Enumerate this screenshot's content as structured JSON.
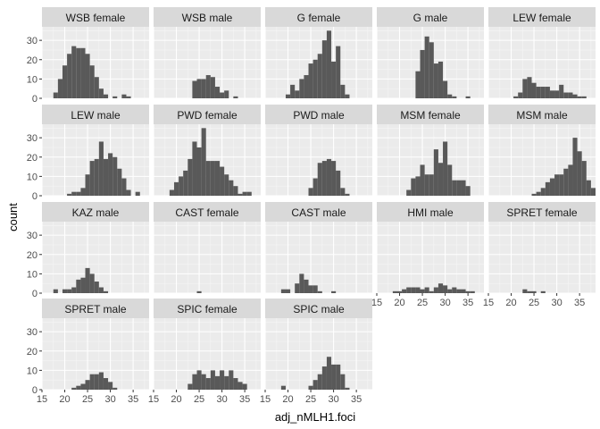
{
  "chart_data": {
    "type": "bar",
    "xlabel": "adj_nMLH1.foci",
    "ylabel": "count",
    "xlim": [
      15,
      38.5
    ],
    "ylim": [
      0,
      37
    ],
    "x_ticks": [
      15,
      20,
      25,
      30,
      35
    ],
    "y_ticks": [
      0,
      10,
      20,
      30
    ],
    "bin_start": 16.5,
    "bin_width": 1,
    "grid": true,
    "colors": {
      "panel_background": "#ebebeb",
      "strip_background": "#d9d9d9",
      "grid_major": "#ffffff",
      "bar": "#595959"
    },
    "panels": [
      {
        "name": "WSB female",
        "counts": [
          0,
          3,
          10,
          17,
          23,
          27,
          26,
          26,
          23,
          17,
          11,
          5,
          2,
          0,
          1,
          0,
          2,
          1,
          0,
          0,
          0,
          0
        ]
      },
      {
        "name": "WSB male",
        "counts": [
          0,
          0,
          0,
          0,
          0,
          0,
          0,
          9,
          10,
          10,
          12,
          11,
          6,
          3,
          4,
          0,
          1,
          0,
          0,
          0,
          0,
          0
        ]
      },
      {
        "name": "G female",
        "counts": [
          0,
          0,
          0,
          2,
          7,
          4,
          10,
          12,
          18,
          20,
          23,
          30,
          35,
          19,
          27,
          7,
          2,
          0,
          0,
          0,
          0,
          0
        ]
      },
      {
        "name": "G male",
        "counts": [
          0,
          0,
          0,
          0,
          0,
          0,
          0,
          14,
          25,
          32,
          29,
          18,
          19,
          9,
          2,
          1,
          0,
          0,
          1,
          0,
          0,
          0
        ]
      },
      {
        "name": "LEW female",
        "counts": [
          0,
          0,
          0,
          0,
          1,
          3,
          10,
          11,
          8,
          6,
          6,
          6,
          4,
          4,
          7,
          3,
          3,
          2,
          1,
          1,
          0,
          0
        ]
      },
      {
        "name": "LEW male",
        "counts": [
          0,
          0,
          0,
          0,
          1,
          2,
          2,
          4,
          11,
          18,
          19,
          28,
          19,
          22,
          20,
          14,
          9,
          3,
          0,
          2,
          0,
          0
        ]
      },
      {
        "name": "PWD female",
        "counts": [
          0,
          0,
          3,
          7,
          10,
          13,
          19,
          28,
          25,
          35,
          18,
          18,
          18,
          15,
          11,
          8,
          5,
          1,
          2,
          2,
          0,
          0
        ]
      },
      {
        "name": "PWD male",
        "counts": [
          0,
          0,
          0,
          0,
          0,
          0,
          0,
          0,
          4,
          9,
          17,
          18,
          19,
          18,
          13,
          4,
          1,
          0,
          0,
          0,
          0,
          0
        ]
      },
      {
        "name": "MSM female",
        "counts": [
          0,
          0,
          0,
          0,
          0,
          3,
          9,
          10,
          16,
          11,
          11,
          24,
          17,
          28,
          16,
          8,
          8,
          8,
          5,
          0,
          0,
          0
        ]
      },
      {
        "name": "MSM male",
        "counts": [
          0,
          0,
          0,
          0,
          0,
          0,
          0,
          0,
          1,
          2,
          4,
          7,
          9,
          11,
          11,
          14,
          16,
          30,
          23,
          18,
          8,
          4
        ]
      },
      {
        "name": "KAZ male",
        "counts": [
          0,
          2,
          0,
          2,
          2,
          3,
          7,
          8,
          13,
          10,
          6,
          3,
          1,
          0,
          0,
          0,
          0,
          0,
          0,
          0,
          0,
          0
        ]
      },
      {
        "name": "CAST female",
        "counts": [
          0,
          0,
          0,
          0,
          0,
          0,
          0,
          0,
          1,
          0,
          0,
          0,
          0,
          0,
          0,
          0,
          0,
          0,
          0,
          0,
          0,
          0
        ]
      },
      {
        "name": "CAST male",
        "counts": [
          0,
          0,
          2,
          2,
          0,
          5,
          10,
          7,
          4,
          4,
          1,
          0,
          0,
          1,
          0,
          0,
          0,
          0,
          0,
          0,
          0,
          0
        ]
      },
      {
        "name": "HMI male",
        "counts": [
          0,
          0,
          1,
          1,
          2,
          3,
          3,
          3,
          2,
          3,
          1,
          3,
          5,
          4,
          2,
          3,
          2,
          2,
          1,
          1,
          0,
          0
        ]
      },
      {
        "name": "SPRET female",
        "counts": [
          0,
          0,
          0,
          0,
          0,
          0,
          2,
          1,
          1,
          0,
          1,
          0,
          0,
          0,
          0,
          0,
          0,
          0,
          0,
          0,
          0,
          0
        ]
      },
      {
        "name": "SPRET male",
        "counts": [
          0,
          0,
          0,
          0,
          0,
          1,
          2,
          3,
          5,
          8,
          8,
          9,
          6,
          4,
          1,
          0,
          0,
          0,
          0,
          0,
          0,
          0
        ]
      },
      {
        "name": "SPIC female",
        "counts": [
          0,
          0,
          0,
          0,
          0,
          0,
          3,
          8,
          10,
          8,
          6,
          10,
          7,
          10,
          7,
          10,
          6,
          4,
          3,
          0,
          0,
          0
        ]
      },
      {
        "name": "SPIC male",
        "counts": [
          0,
          0,
          2,
          0,
          0,
          0,
          0,
          0,
          2,
          5,
          8,
          12,
          17,
          13,
          13,
          8,
          1,
          0,
          0,
          0,
          0,
          0
        ]
      }
    ]
  }
}
